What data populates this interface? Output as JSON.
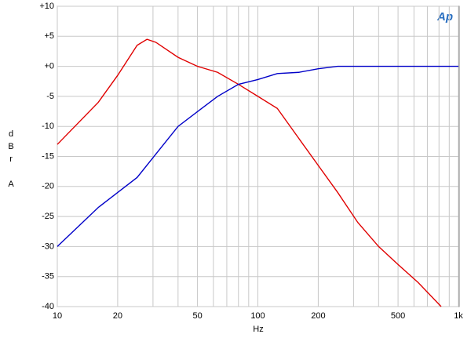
{
  "chart_data": {
    "type": "line",
    "logo": "Ap",
    "x_label": "Hz",
    "y_label": "dBr A",
    "xscale": "log",
    "xlim": [
      10,
      1000
    ],
    "xticks": [
      10,
      20,
      50,
      100,
      200,
      500,
      {
        "value": 1000,
        "label": "1k"
      }
    ],
    "xminorticks": [
      30,
      40,
      60,
      70,
      80,
      90,
      300,
      400,
      600,
      700,
      800,
      900
    ],
    "ylim": [
      -40,
      10
    ],
    "yticks": [
      {
        "value": 10,
        "label": "+10"
      },
      {
        "value": 5,
        "label": "+5"
      },
      {
        "value": 0,
        "label": "+0"
      },
      -5,
      -10,
      -15,
      -20,
      -25,
      -30,
      -35,
      -40
    ],
    "grid": true,
    "series": [
      {
        "color": "#e00000",
        "x": [
          10,
          16,
          20,
          25,
          28,
          31,
          40,
          50,
          63,
          80,
          100,
          125,
          160,
          200,
          250,
          315,
          400,
          500,
          630,
          820
        ],
        "values": [
          -13,
          -6,
          -1.5,
          3.5,
          4.5,
          4,
          1.5,
          0,
          -1,
          -3,
          -5,
          -7,
          -12,
          -16.5,
          -21,
          -26,
          -30,
          -33,
          -36,
          -40
        ]
      },
      {
        "color": "#0000c8",
        "x": [
          10,
          16,
          25,
          40,
          63,
          80,
          100,
          125,
          160,
          200,
          250,
          1000
        ],
        "values": [
          -30,
          -23.5,
          -18.5,
          -10,
          -5,
          -3,
          -2.2,
          -1.2,
          -1,
          -0.4,
          0,
          0
        ]
      }
    ]
  }
}
